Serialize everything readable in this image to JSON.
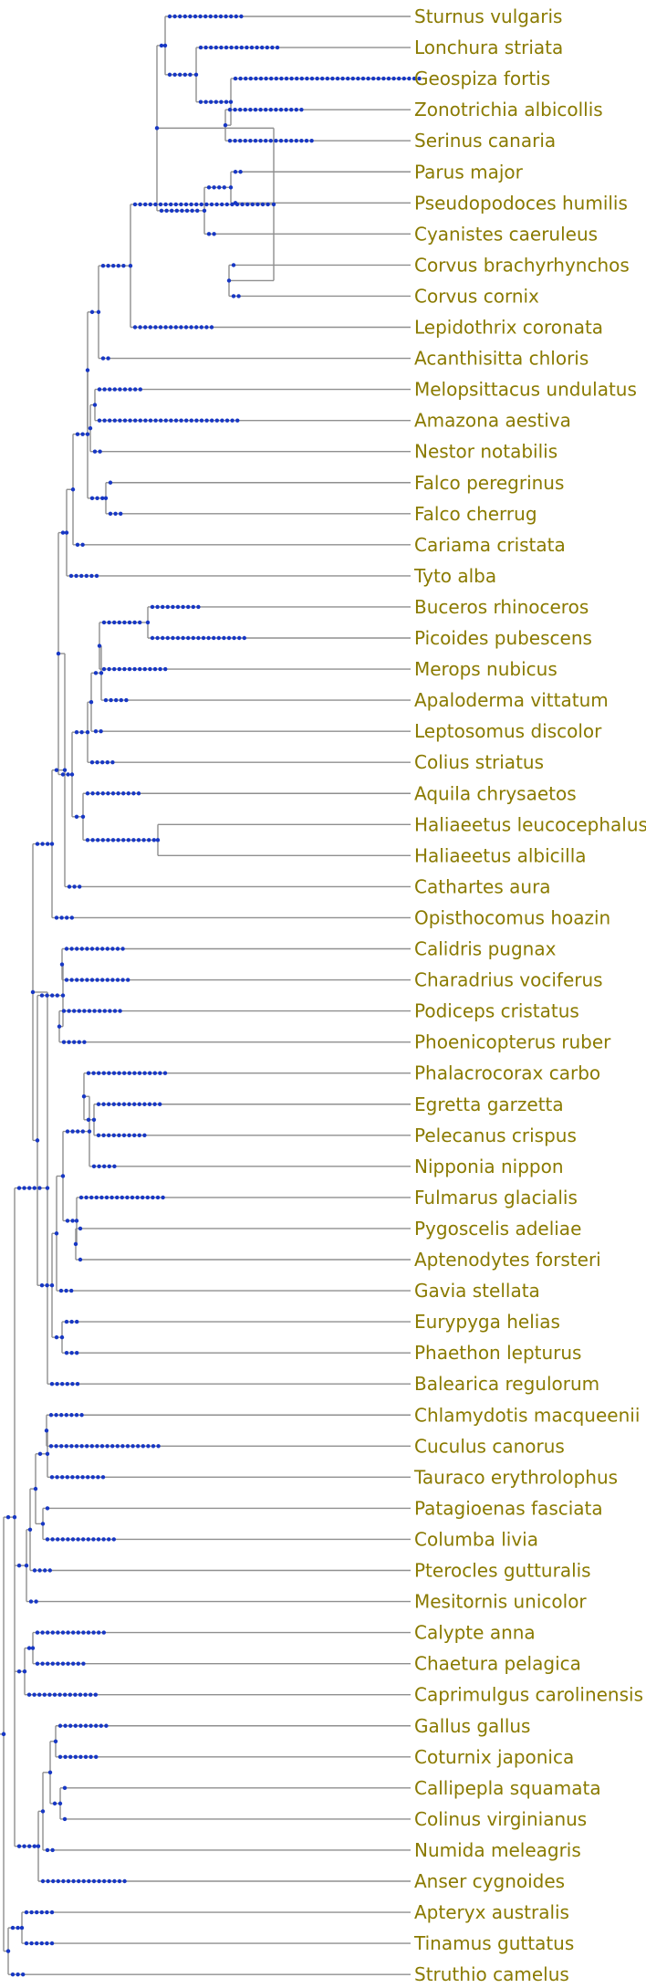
{
  "tree": {
    "colors": {
      "branch": "#8f8f8f",
      "dot": "#1737c4",
      "label": "#8a7a00",
      "background": "#ffffff"
    },
    "tips": [
      {
        "label": "Sturnus vulgaris",
        "dots": 15
      },
      {
        "label": "Lonchura striata",
        "dots": 16
      },
      {
        "label": "Geospiza fortis",
        "dots": 37
      },
      {
        "label": "Zonotrichia albicollis",
        "dots": 15
      },
      {
        "label": "Serinus canaria",
        "dots": 17
      },
      {
        "label": "Parus major",
        "dots": 2
      },
      {
        "label": "Pseudopodoces humilis",
        "dots": 1
      },
      {
        "label": "Cyanistes caeruleus",
        "dots": 2
      },
      {
        "label": "Corvus brachyrhynchos",
        "dots": 1
      },
      {
        "label": "Corvus cornix",
        "dots": 2
      },
      {
        "label": "Lepidothrix coronata",
        "dots": 16
      },
      {
        "label": "Acanthisitta chloris",
        "dots": 2
      },
      {
        "label": "Melopsittacus undulatus",
        "dots": 9
      },
      {
        "label": "Amazona aestiva",
        "dots": 28
      },
      {
        "label": "Nestor notabilis",
        "dots": 2
      },
      {
        "label": "Falco peregrinus",
        "dots": 1
      },
      {
        "label": "Falco cherrug",
        "dots": 3
      },
      {
        "label": "Cariama cristata",
        "dots": 2
      },
      {
        "label": "Tyto alba",
        "dots": 6
      },
      {
        "label": "Buceros rhinoceros",
        "dots": 10
      },
      {
        "label": "Picoides pubescens",
        "dots": 19
      },
      {
        "label": "Merops nubicus",
        "dots": 13
      },
      {
        "label": "Apaloderma vittatum",
        "dots": 5
      },
      {
        "label": "Leptosomus discolor",
        "dots": 2
      },
      {
        "label": "Colius striatus",
        "dots": 5
      },
      {
        "label": "Aquila chrysaetos",
        "dots": 11
      },
      {
        "label": "Haliaeetus leucocephalus",
        "dots": 0
      },
      {
        "label": "Haliaeetus albicilla",
        "dots": 0
      },
      {
        "label": "Cathartes aura",
        "dots": 3
      },
      {
        "label": "Opisthocomus hoazin",
        "dots": 4
      },
      {
        "label": "Calidris pugnax",
        "dots": 12
      },
      {
        "label": "Charadrius vociferus",
        "dots": 13
      },
      {
        "label": "Podiceps cristatus",
        "dots": 12
      },
      {
        "label": "Phoenicopterus ruber",
        "dots": 5
      },
      {
        "label": "Phalacrocorax carbo",
        "dots": 16
      },
      {
        "label": "Egretta garzetta",
        "dots": 13
      },
      {
        "label": "Pelecanus crispus",
        "dots": 10
      },
      {
        "label": "Nipponia nippon",
        "dots": 5
      },
      {
        "label": "Fulmarus glacialis",
        "dots": 17
      },
      {
        "label": "Pygoscelis adeliae",
        "dots": 1
      },
      {
        "label": "Aptenodytes forsteri",
        "dots": 1
      },
      {
        "label": "Gavia stellata",
        "dots": 3
      },
      {
        "label": "Eurypyga helias",
        "dots": 3
      },
      {
        "label": "Phaethon lepturus",
        "dots": 3
      },
      {
        "label": "Balearica regulorum",
        "dots": 6
      },
      {
        "label": "Chlamydotis macqueenii",
        "dots": 7
      },
      {
        "label": "Cuculus canorus",
        "dots": 22
      },
      {
        "label": "Tauraco erythrolophus",
        "dots": 11
      },
      {
        "label": "Patagioenas fasciata",
        "dots": 1
      },
      {
        "label": "Columba livia",
        "dots": 14
      },
      {
        "label": "Pterocles gutturalis",
        "dots": 4
      },
      {
        "label": "Mesitornis unicolor",
        "dots": 2
      },
      {
        "label": "Calypte anna",
        "dots": 14
      },
      {
        "label": "Chaetura pelagica",
        "dots": 10
      },
      {
        "label": "Caprimulgus carolinensis",
        "dots": 14
      },
      {
        "label": "Gallus gallus",
        "dots": 10
      },
      {
        "label": "Coturnix japonica",
        "dots": 8
      },
      {
        "label": "Callipepla squamata",
        "dots": 1
      },
      {
        "label": "Colinus virginianus",
        "dots": 1
      },
      {
        "label": "Numida meleagris",
        "dots": 2
      },
      {
        "label": "Anser cygnoides",
        "dots": 17
      },
      {
        "label": "Apteryx australis",
        "dots": 6
      },
      {
        "label": "Tinamus guttatus",
        "dots": 6
      },
      {
        "label": "Struthio camelus",
        "dots": 3
      }
    ]
  }
}
